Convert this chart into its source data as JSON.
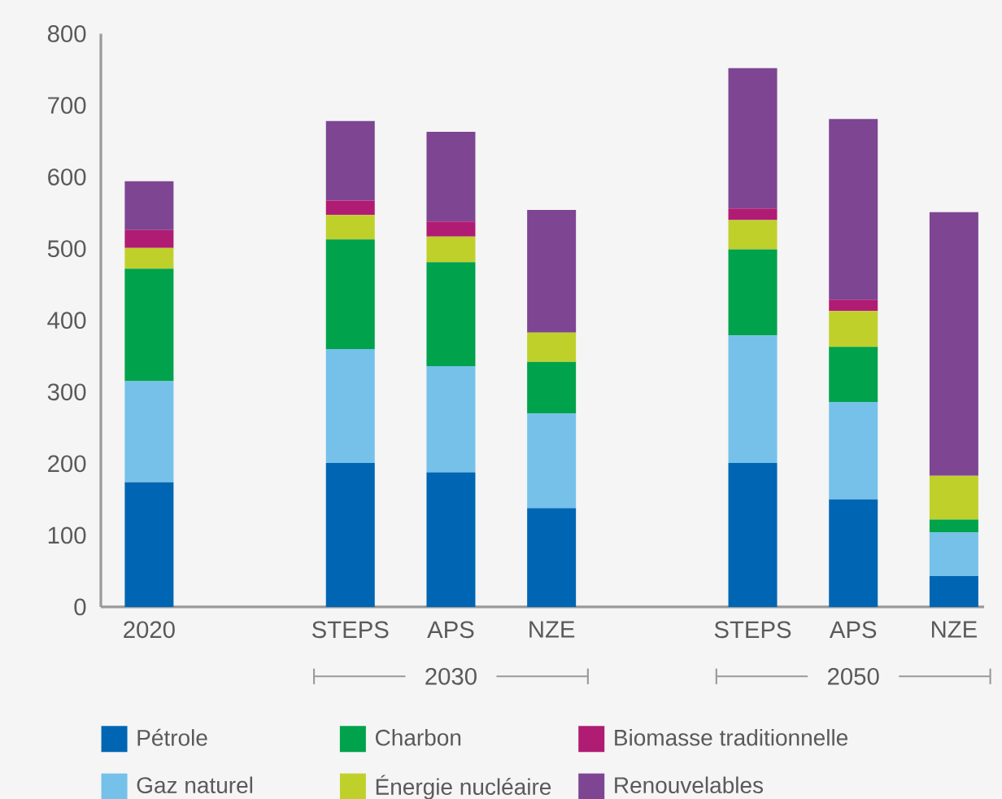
{
  "chart_data": {
    "type": "bar",
    "stacked": true,
    "categories": [
      "2020",
      null,
      "STEPS",
      "APS",
      "NZE",
      null,
      "STEPS",
      "APS",
      "NZE"
    ],
    "series": [
      {
        "name": "Pétrole",
        "color": "#0066b3",
        "values": [
          174,
          null,
          201,
          188,
          138,
          null,
          201,
          150,
          43
        ]
      },
      {
        "name": "Gaz naturel",
        "color": "#75c1ea",
        "values": [
          141,
          null,
          159,
          148,
          132,
          null,
          178,
          136,
          61
        ]
      },
      {
        "name": "Charbon",
        "color": "#00a24b",
        "values": [
          157,
          null,
          153,
          145,
          72,
          null,
          120,
          77,
          18
        ]
      },
      {
        "name": "Énergie nucléaire",
        "color": "#c0d02a",
        "values": [
          29,
          null,
          34,
          36,
          41,
          null,
          41,
          50,
          61
        ]
      },
      {
        "name": "Biomasse traditionnelle",
        "color": "#b01c73",
        "values": [
          25,
          null,
          20,
          21,
          0,
          null,
          16,
          16,
          0
        ]
      },
      {
        "name": "Renouvelables",
        "color": "#7e4593",
        "values": [
          68,
          null,
          111,
          125,
          171,
          null,
          196,
          252,
          368
        ]
      }
    ],
    "ylim": [
      0,
      800
    ],
    "yticks": [
      0,
      100,
      200,
      300,
      400,
      500,
      600,
      700,
      800
    ],
    "legend": "bottom",
    "annotations": [
      "2030",
      "2050"
    ]
  }
}
